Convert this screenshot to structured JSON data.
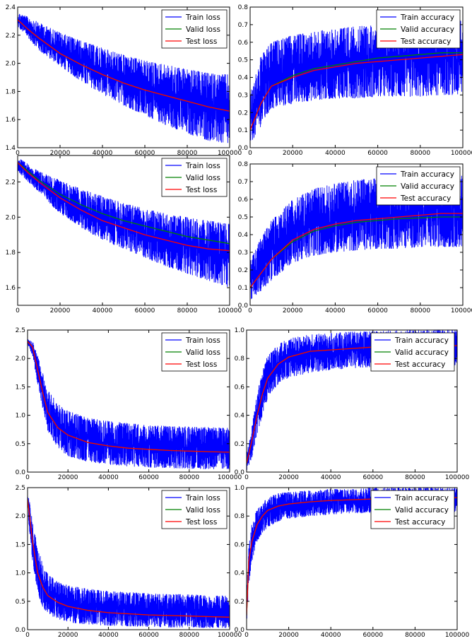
{
  "colors": {
    "train": "#0000ff",
    "valid": "#008000",
    "test": "#ff0000",
    "axes": "#000000",
    "background": "#ffffff"
  },
  "chart_data": [
    {
      "type": "line",
      "x": [
        0,
        5000,
        10000,
        20000,
        30000,
        40000,
        50000,
        60000,
        70000,
        80000,
        90000,
        100000
      ],
      "xlim": [
        0,
        100000
      ],
      "ylim": [
        1.4,
        2.4
      ],
      "xticks": [
        "0",
        "20000",
        "40000",
        "60000",
        "80000",
        "100000"
      ],
      "yticks": [
        "1.4",
        "1.6",
        "1.8",
        "2.0",
        "2.2",
        "2.4"
      ],
      "ytick_values": [
        1.4,
        1.6,
        1.8,
        2.0,
        2.2,
        2.4
      ],
      "legend": "top-right",
      "band": {
        "upper": [
          2.36,
          2.33,
          2.29,
          2.22,
          2.16,
          2.11,
          2.06,
          2.02,
          1.99,
          1.96,
          1.93,
          1.92
        ],
        "lower": [
          2.26,
          2.18,
          2.09,
          1.98,
          1.87,
          1.78,
          1.7,
          1.63,
          1.56,
          1.5,
          1.45,
          1.42
        ]
      },
      "series": [
        {
          "name": "Train loss",
          "role": "train",
          "values": [
            2.32,
            2.26,
            2.2,
            2.1,
            2.02,
            1.95,
            1.89,
            1.84,
            1.79,
            1.75,
            1.71,
            1.68
          ]
        },
        {
          "name": "Valid loss",
          "role": "valid",
          "values": [
            2.31,
            2.24,
            2.18,
            2.07,
            1.99,
            1.92,
            1.86,
            1.81,
            1.77,
            1.73,
            1.69,
            1.66
          ]
        },
        {
          "name": "Test loss",
          "role": "test",
          "values": [
            2.31,
            2.24,
            2.18,
            2.07,
            1.99,
            1.92,
            1.86,
            1.81,
            1.77,
            1.73,
            1.69,
            1.66
          ]
        }
      ]
    },
    {
      "type": "line",
      "x": [
        0,
        5000,
        10000,
        20000,
        30000,
        40000,
        50000,
        60000,
        70000,
        80000,
        90000,
        100000
      ],
      "xlim": [
        0,
        100000
      ],
      "ylim": [
        0.0,
        0.8
      ],
      "xticks": [
        "0",
        "20000",
        "40000",
        "60000",
        "80000",
        "100000"
      ],
      "yticks": [
        "0.0",
        "0.1",
        "0.2",
        "0.3",
        "0.4",
        "0.5",
        "0.6",
        "0.7",
        "0.8"
      ],
      "ytick_values": [
        0.0,
        0.1,
        0.2,
        0.3,
        0.4,
        0.5,
        0.6,
        0.7,
        0.8
      ],
      "legend": "top-right",
      "band": {
        "upper": [
          0.3,
          0.52,
          0.6,
          0.64,
          0.66,
          0.68,
          0.69,
          0.7,
          0.71,
          0.72,
          0.72,
          0.73
        ],
        "lower": [
          0.02,
          0.12,
          0.22,
          0.25,
          0.27,
          0.28,
          0.28,
          0.29,
          0.29,
          0.29,
          0.3,
          0.3
        ]
      },
      "series": [
        {
          "name": "Train accuracy",
          "role": "train",
          "values": [
            0.1,
            0.25,
            0.35,
            0.4,
            0.44,
            0.46,
            0.48,
            0.49,
            0.5,
            0.51,
            0.52,
            0.52
          ]
        },
        {
          "name": "Valid accuracy",
          "role": "valid",
          "values": [
            0.1,
            0.25,
            0.35,
            0.41,
            0.45,
            0.47,
            0.49,
            0.51,
            0.52,
            0.53,
            0.54,
            0.54
          ]
        },
        {
          "name": "Test accuracy",
          "role": "test",
          "values": [
            0.1,
            0.25,
            0.35,
            0.4,
            0.44,
            0.46,
            0.48,
            0.49,
            0.5,
            0.51,
            0.52,
            0.53
          ]
        }
      ]
    },
    {
      "type": "line",
      "x": [
        0,
        5000,
        10000,
        20000,
        30000,
        40000,
        50000,
        60000,
        70000,
        80000,
        90000,
        100000
      ],
      "xlim": [
        0,
        100000
      ],
      "ylim": [
        1.5,
        2.35
      ],
      "xticks": [
        "0",
        "20000",
        "40000",
        "60000",
        "80000",
        "100000"
      ],
      "yticks": [
        "1.6",
        "1.8",
        "2.0",
        "2.2"
      ],
      "ytick_values": [
        1.6,
        1.8,
        2.0,
        2.2
      ],
      "legend": "top-right",
      "band": {
        "upper": [
          2.34,
          2.3,
          2.26,
          2.21,
          2.16,
          2.12,
          2.08,
          2.05,
          2.02,
          2.0,
          1.98,
          1.97
        ],
        "lower": [
          2.26,
          2.2,
          2.14,
          2.02,
          1.94,
          1.87,
          1.82,
          1.77,
          1.72,
          1.68,
          1.64,
          1.6
        ]
      },
      "series": [
        {
          "name": "Train loss",
          "role": "train",
          "values": [
            2.31,
            2.25,
            2.2,
            2.11,
            2.04,
            1.98,
            1.94,
            1.9,
            1.87,
            1.84,
            1.82,
            1.8
          ]
        },
        {
          "name": "Valid loss",
          "role": "valid",
          "values": [
            2.31,
            2.26,
            2.21,
            2.13,
            2.07,
            2.02,
            1.98,
            1.95,
            1.92,
            1.89,
            1.87,
            1.85
          ]
        },
        {
          "name": "Test loss",
          "role": "test",
          "values": [
            2.31,
            2.25,
            2.2,
            2.11,
            2.04,
            1.98,
            1.94,
            1.9,
            1.87,
            1.84,
            1.82,
            1.81
          ]
        }
      ]
    },
    {
      "type": "line",
      "x": [
        0,
        5000,
        10000,
        20000,
        30000,
        40000,
        50000,
        60000,
        70000,
        80000,
        90000,
        100000
      ],
      "xlim": [
        0,
        100000
      ],
      "ylim": [
        0.0,
        0.8
      ],
      "xticks": [
        "0",
        "20000",
        "40000",
        "60000",
        "80000",
        "100000"
      ],
      "yticks": [
        "0.0",
        "0.1",
        "0.2",
        "0.3",
        "0.4",
        "0.5",
        "0.6",
        "0.7",
        "0.8"
      ],
      "ytick_values": [
        0.0,
        0.1,
        0.2,
        0.3,
        0.4,
        0.5,
        0.6,
        0.7,
        0.8
      ],
      "legend": "top-right",
      "band": {
        "upper": [
          0.25,
          0.38,
          0.48,
          0.6,
          0.66,
          0.69,
          0.71,
          0.72,
          0.73,
          0.73,
          0.74,
          0.74
        ],
        "lower": [
          0.03,
          0.08,
          0.14,
          0.24,
          0.28,
          0.3,
          0.31,
          0.32,
          0.32,
          0.33,
          0.33,
          0.33
        ]
      },
      "series": [
        {
          "name": "Train accuracy",
          "role": "train",
          "values": [
            0.1,
            0.18,
            0.26,
            0.37,
            0.43,
            0.46,
            0.48,
            0.49,
            0.5,
            0.51,
            0.51,
            0.52
          ]
        },
        {
          "name": "Valid accuracy",
          "role": "valid",
          "values": [
            0.1,
            0.18,
            0.26,
            0.36,
            0.42,
            0.45,
            0.47,
            0.48,
            0.49,
            0.495,
            0.5,
            0.5
          ]
        },
        {
          "name": "Test accuracy",
          "role": "test",
          "values": [
            0.1,
            0.18,
            0.26,
            0.37,
            0.43,
            0.46,
            0.48,
            0.49,
            0.5,
            0.51,
            0.52,
            0.52
          ]
        }
      ]
    },
    {
      "type": "line",
      "x": [
        0,
        2500,
        5000,
        7500,
        10000,
        15000,
        20000,
        30000,
        40000,
        50000,
        60000,
        70000,
        80000,
        90000,
        100000
      ],
      "xlim": [
        0,
        100000
      ],
      "ylim": [
        0.0,
        2.5
      ],
      "xticks": [
        "0",
        "20000",
        "40000",
        "60000",
        "80000",
        "100000"
      ],
      "yticks": [
        "0.0",
        "0.5",
        "1.0",
        "1.5",
        "2.0",
        "2.5"
      ],
      "ytick_values": [
        0.0,
        0.5,
        1.0,
        1.5,
        2.0,
        2.5
      ],
      "legend": "top-right",
      "band": {
        "upper": [
          2.35,
          2.3,
          2.05,
          1.75,
          1.45,
          1.2,
          1.08,
          0.95,
          0.9,
          0.86,
          0.83,
          0.81,
          0.8,
          0.79,
          0.78
        ],
        "lower": [
          2.25,
          2.05,
          1.55,
          1.1,
          0.72,
          0.4,
          0.28,
          0.18,
          0.13,
          0.1,
          0.08,
          0.07,
          0.06,
          0.05,
          0.05
        ]
      },
      "series": [
        {
          "name": "Train loss",
          "role": "train",
          "values": [
            2.3,
            2.2,
            1.8,
            1.4,
            1.05,
            0.78,
            0.65,
            0.52,
            0.46,
            0.42,
            0.4,
            0.38,
            0.37,
            0.36,
            0.35
          ]
        },
        {
          "name": "Valid loss",
          "role": "valid",
          "values": [
            2.3,
            2.2,
            1.8,
            1.4,
            1.05,
            0.78,
            0.65,
            0.52,
            0.46,
            0.42,
            0.4,
            0.38,
            0.37,
            0.36,
            0.35
          ]
        },
        {
          "name": "Test loss",
          "role": "test",
          "values": [
            2.3,
            2.2,
            1.8,
            1.4,
            1.05,
            0.78,
            0.65,
            0.52,
            0.46,
            0.42,
            0.4,
            0.38,
            0.37,
            0.36,
            0.35
          ]
        }
      ]
    },
    {
      "type": "line",
      "x": [
        0,
        2500,
        5000,
        7500,
        10000,
        15000,
        20000,
        30000,
        40000,
        50000,
        60000,
        70000,
        80000,
        90000,
        100000
      ],
      "xlim": [
        0,
        100000
      ],
      "ylim": [
        0.0,
        1.0
      ],
      "xticks": [
        "0",
        "20000",
        "40000",
        "60000",
        "80000",
        "100000"
      ],
      "yticks": [
        "0.0",
        "0.2",
        "0.4",
        "0.6",
        "0.8",
        "1.0"
      ],
      "ytick_values": [
        0.0,
        0.2,
        0.4,
        0.6,
        0.8,
        1.0
      ],
      "legend": "top-right",
      "band": {
        "upper": [
          0.12,
          0.32,
          0.55,
          0.72,
          0.82,
          0.9,
          0.94,
          0.97,
          0.98,
          0.99,
          0.99,
          1.0,
          1.0,
          1.0,
          1.0
        ],
        "lower": [
          0.01,
          0.1,
          0.25,
          0.4,
          0.52,
          0.62,
          0.66,
          0.7,
          0.72,
          0.73,
          0.74,
          0.74,
          0.75,
          0.75,
          0.75
        ]
      },
      "series": [
        {
          "name": "Train accuracy",
          "role": "train",
          "values": [
            0.06,
            0.22,
            0.4,
            0.55,
            0.66,
            0.76,
            0.81,
            0.85,
            0.86,
            0.87,
            0.88,
            0.885,
            0.89,
            0.89,
            0.89
          ]
        },
        {
          "name": "Valid accuracy",
          "role": "valid",
          "values": [
            0.06,
            0.22,
            0.4,
            0.55,
            0.66,
            0.76,
            0.81,
            0.85,
            0.86,
            0.87,
            0.88,
            0.885,
            0.89,
            0.89,
            0.89
          ]
        },
        {
          "name": "Test accuracy",
          "role": "test",
          "values": [
            0.06,
            0.22,
            0.4,
            0.55,
            0.66,
            0.76,
            0.81,
            0.85,
            0.86,
            0.87,
            0.88,
            0.885,
            0.89,
            0.89,
            0.89
          ]
        }
      ]
    },
    {
      "type": "line",
      "x": [
        0,
        1000,
        2500,
        5000,
        7500,
        10000,
        15000,
        20000,
        30000,
        40000,
        50000,
        60000,
        70000,
        80000,
        90000,
        100000
      ],
      "xlim": [
        0,
        100000
      ],
      "ylim": [
        0.0,
        2.5
      ],
      "xticks": [
        "0",
        "20000",
        "40000",
        "60000",
        "80000",
        "100000"
      ],
      "yticks": [
        "0.0",
        "0.5",
        "1.0",
        "1.5",
        "2.0",
        "2.5"
      ],
      "ytick_values": [
        0.0,
        0.5,
        1.0,
        1.5,
        2.0,
        2.5
      ],
      "legend": "top-right",
      "band": {
        "upper": [
          2.4,
          2.25,
          1.9,
          1.45,
          1.15,
          0.98,
          0.85,
          0.78,
          0.72,
          0.68,
          0.66,
          0.64,
          0.63,
          0.62,
          0.61,
          0.6
        ],
        "lower": [
          2.2,
          1.7,
          1.2,
          0.65,
          0.4,
          0.28,
          0.18,
          0.13,
          0.09,
          0.07,
          0.06,
          0.05,
          0.04,
          0.04,
          0.03,
          0.03
        ]
      },
      "series": [
        {
          "name": "Train loss",
          "role": "train",
          "values": [
            2.3,
            2.0,
            1.55,
            1.0,
            0.75,
            0.6,
            0.48,
            0.41,
            0.34,
            0.3,
            0.28,
            0.26,
            0.25,
            0.24,
            0.23,
            0.22
          ]
        },
        {
          "name": "Valid loss",
          "role": "valid",
          "values": [
            2.3,
            2.0,
            1.55,
            1.0,
            0.75,
            0.6,
            0.48,
            0.41,
            0.34,
            0.3,
            0.28,
            0.26,
            0.25,
            0.24,
            0.23,
            0.22
          ]
        },
        {
          "name": "Test loss",
          "role": "test",
          "values": [
            2.3,
            2.0,
            1.55,
            1.0,
            0.75,
            0.6,
            0.48,
            0.41,
            0.34,
            0.3,
            0.28,
            0.26,
            0.25,
            0.24,
            0.23,
            0.22
          ]
        }
      ]
    },
    {
      "type": "line",
      "x": [
        0,
        1000,
        2500,
        5000,
        7500,
        10000,
        15000,
        20000,
        30000,
        40000,
        50000,
        60000,
        70000,
        80000,
        90000,
        100000
      ],
      "xlim": [
        0,
        100000
      ],
      "ylim": [
        0.0,
        1.0
      ],
      "xticks": [
        "0",
        "20000",
        "40000",
        "60000",
        "80000",
        "100000"
      ],
      "yticks": [
        "0.0",
        "0.2",
        "0.4",
        "0.6",
        "0.8",
        "1.0"
      ],
      "ytick_values": [
        0.0,
        0.2,
        0.4,
        0.6,
        0.8,
        1.0
      ],
      "legend": "top-right",
      "band": {
        "upper": [
          0.25,
          0.6,
          0.75,
          0.85,
          0.9,
          0.93,
          0.96,
          0.97,
          0.98,
          0.99,
          0.99,
          1.0,
          1.0,
          1.0,
          1.0,
          1.0
        ],
        "lower": [
          0.02,
          0.3,
          0.48,
          0.62,
          0.68,
          0.72,
          0.76,
          0.78,
          0.8,
          0.81,
          0.82,
          0.82,
          0.83,
          0.83,
          0.83,
          0.83
        ]
      },
      "series": [
        {
          "name": "Train accuracy",
          "role": "train",
          "values": [
            0.1,
            0.48,
            0.62,
            0.74,
            0.8,
            0.84,
            0.87,
            0.885,
            0.9,
            0.91,
            0.915,
            0.92,
            0.92,
            0.925,
            0.925,
            0.93
          ]
        },
        {
          "name": "Valid accuracy",
          "role": "valid",
          "values": [
            0.1,
            0.48,
            0.62,
            0.74,
            0.8,
            0.84,
            0.87,
            0.885,
            0.9,
            0.91,
            0.915,
            0.92,
            0.92,
            0.925,
            0.925,
            0.93
          ]
        },
        {
          "name": "Test accuracy",
          "role": "test",
          "values": [
            0.1,
            0.48,
            0.62,
            0.74,
            0.8,
            0.84,
            0.87,
            0.885,
            0.9,
            0.91,
            0.915,
            0.92,
            0.92,
            0.925,
            0.925,
            0.93
          ]
        }
      ]
    }
  ]
}
